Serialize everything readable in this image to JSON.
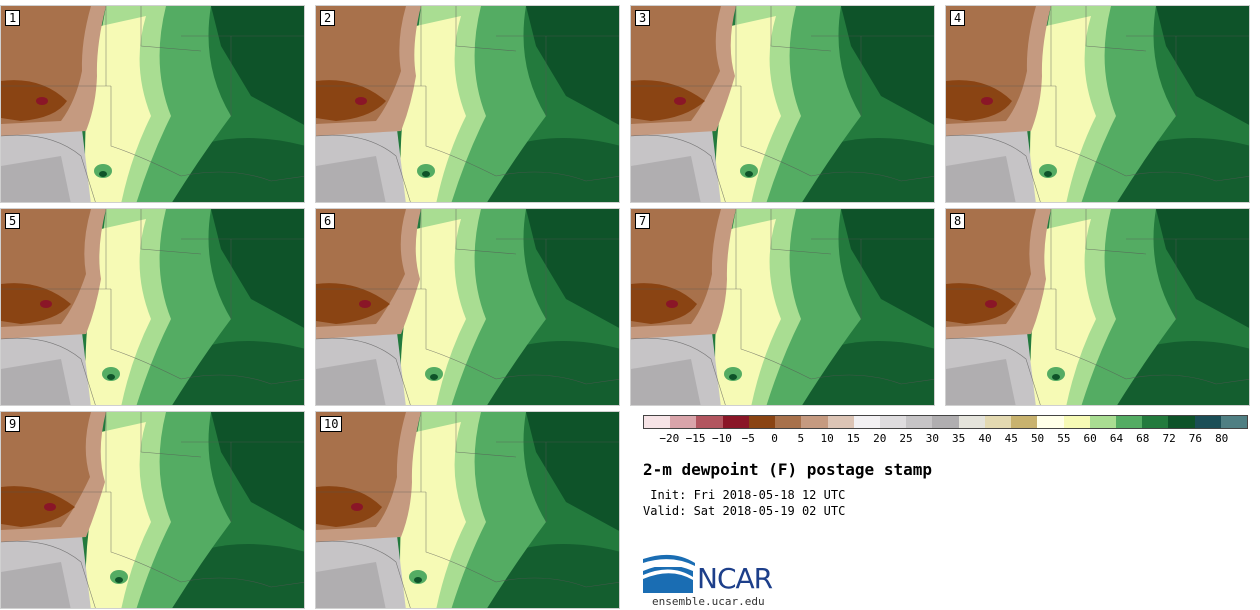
{
  "title": "2-m dewpoint (F) postage stamp",
  "init": " Init: Fri 2018-05-18 12 UTC",
  "valid": "Valid: Sat 2018-05-19 02 UTC",
  "logo_text": "NCAR",
  "logo_url": "ensemble.ucar.edu",
  "panels": [
    "1",
    "2",
    "3",
    "4",
    "5",
    "6",
    "7",
    "8",
    "9",
    "10"
  ],
  "colorbar": {
    "tick_labels": [
      "−20",
      "−15",
      "−10",
      "−5",
      "0",
      "5",
      "10",
      "15",
      "20",
      "25",
      "30",
      "35",
      "40",
      "45",
      "50",
      "55",
      "60",
      "64",
      "68",
      "72",
      "76",
      "80"
    ],
    "colors": [
      "#f6e3e6",
      "#d9a4aa",
      "#b2555f",
      "#8a1627",
      "#8a4413",
      "#a8714b",
      "#c59a80",
      "#dcc4b5",
      "#f2f0f2",
      "#dedcde",
      "#c6c4c6",
      "#b0aeb0",
      "#e4e3db",
      "#e3d9b1",
      "#c8b26e",
      "#ffffe8",
      "#f6fab5",
      "#a9dd92",
      "#54ac63",
      "#237a3d",
      "#0e5329",
      "#1b4e56",
      "#4f7f83"
    ]
  },
  "colors": {
    "dry_dark": "#8a4413",
    "dry_brown": "#a8714b",
    "dry_light": "#c59a80",
    "gray": "#c6c4c6",
    "yellow": "#f6fab5",
    "green_light": "#a9dd92",
    "green_mid": "#54ac63",
    "green_dark": "#237a3d",
    "green_darkest": "#0e5329",
    "logo_blue": "#1d3f8a"
  }
}
